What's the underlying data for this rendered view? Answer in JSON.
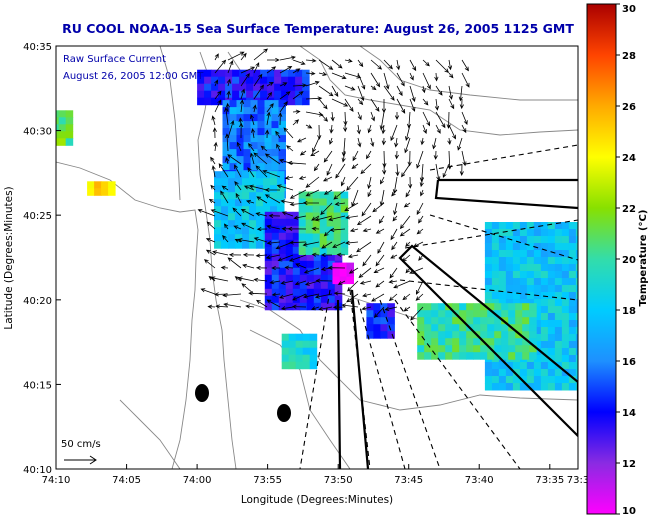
{
  "chart_data": {
    "type": "heatmap",
    "title": "RU COOL  NOAA-15  Sea Surface Temperature:  August 26, 2005 1125 GMT",
    "annotation_lines": [
      "Raw Surface Current",
      "August 26, 2005 12:00 GMT"
    ],
    "xlabel": "Longitude (Degrees:Minutes)",
    "ylabel": "Latitude (Degrees:Minutes)",
    "x_range_min": [
      -74.1667,
      -73.55
    ],
    "y_range_min": [
      40.1667,
      40.5833
    ],
    "x_ticks": [
      {
        "label": "74:10",
        "value": -74.1667
      },
      {
        "label": "74:05",
        "value": -74.0833
      },
      {
        "label": "74:00",
        "value": -74.0
      },
      {
        "label": "73:55",
        "value": -73.9167
      },
      {
        "label": "73:50",
        "value": -73.8333
      },
      {
        "label": "73:45",
        "value": -73.75
      },
      {
        "label": "73:40",
        "value": -73.6667
      },
      {
        "label": "73:35",
        "value": -73.5833
      },
      {
        "label": "73:3",
        "value": -73.55
      }
    ],
    "y_ticks": [
      {
        "label": "40:35",
        "value": 40.5833
      },
      {
        "label": "40:30",
        "value": 40.5
      },
      {
        "label": "40:25",
        "value": 40.4167
      },
      {
        "label": "40:20",
        "value": 40.3333
      },
      {
        "label": "40:15",
        "value": 40.25
      },
      {
        "label": "40:10",
        "value": 40.1667
      }
    ],
    "colorbar": {
      "label": "Temperature (°C)",
      "min": 10,
      "max": 30,
      "ticks": [
        "10",
        "12",
        "14",
        "16",
        "18",
        "20",
        "22",
        "24",
        "26",
        "28",
        "30"
      ]
    },
    "scale_arrow": {
      "label": "50 cm/s",
      "speed_cm_s": 50
    },
    "sst_patches": [
      {
        "lon": [
          -74.0,
          -73.87
        ],
        "lat": [
          40.53,
          40.56
        ],
        "temp": 14
      },
      {
        "lon": [
          -73.97,
          -73.9
        ],
        "lat": [
          40.44,
          40.53
        ],
        "temp": 16
      },
      {
        "lon": [
          -73.98,
          -73.9
        ],
        "lat": [
          40.39,
          40.46
        ],
        "temp": 18
      },
      {
        "lon": [
          -73.92,
          -73.83
        ],
        "lat": [
          40.33,
          40.42
        ],
        "temp": 14
      },
      {
        "lon": [
          -73.88,
          -73.83
        ],
        "lat": [
          40.38,
          40.44
        ],
        "temp": 20
      },
      {
        "lon": [
          -73.84,
          -73.82
        ],
        "lat": [
          40.35,
          40.37
        ],
        "temp": 11
      },
      {
        "lon": [
          -73.66,
          -73.55
        ],
        "lat": [
          40.25,
          40.41
        ],
        "temp": 18
      },
      {
        "lon": [
          -73.74,
          -73.6
        ],
        "lat": [
          40.28,
          40.33
        ],
        "temp": 20
      },
      {
        "lon": [
          -74.13,
          -74.1
        ],
        "lat": [
          40.44,
          40.45
        ],
        "temp": 25
      },
      {
        "lon": [
          -74.18,
          -74.15
        ],
        "lat": [
          40.49,
          40.52
        ],
        "temp": 21
      },
      {
        "lon": [
          -73.9,
          -73.86
        ],
        "lat": [
          40.27,
          40.3
        ],
        "temp": 19
      },
      {
        "lon": [
          -73.8,
          -73.77
        ],
        "lat": [
          40.3,
          40.33
        ],
        "temp": 14
      }
    ]
  }
}
